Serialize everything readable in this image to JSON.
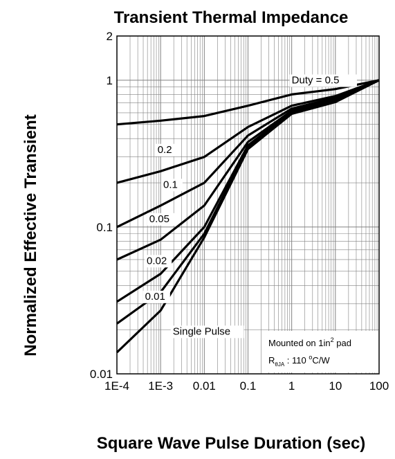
{
  "chart_data": {
    "type": "line",
    "title": "Transient Thermal Impedance",
    "xlabel": "Square Wave Pulse Duration (sec)",
    "ylabel": "Normalized Effective Transient",
    "xscale": "log",
    "yscale": "log",
    "xlim": [
      0.0001,
      100
    ],
    "ylim": [
      0.01,
      2
    ],
    "xtick_labels": [
      "1E-4",
      "1E-3",
      "0.01",
      "0.1",
      "1",
      "10",
      "100"
    ],
    "ytick_labels": [
      "0.01",
      "0.1",
      "1",
      "2"
    ],
    "grid": true,
    "series": [
      {
        "name": "Duty = 0.5",
        "x": [
          0.0001,
          0.001,
          0.01,
          0.1,
          1,
          10,
          100
        ],
        "y": [
          0.5,
          0.53,
          0.57,
          0.67,
          0.8,
          0.87,
          1.0
        ]
      },
      {
        "name": "0.2",
        "x": [
          0.0001,
          0.001,
          0.01,
          0.1,
          1,
          10,
          100
        ],
        "y": [
          0.2,
          0.24,
          0.3,
          0.48,
          0.67,
          0.78,
          1.0
        ]
      },
      {
        "name": "0.1",
        "x": [
          0.0001,
          0.001,
          0.01,
          0.1,
          1,
          10,
          100
        ],
        "y": [
          0.1,
          0.14,
          0.2,
          0.42,
          0.64,
          0.76,
          1.0
        ]
      },
      {
        "name": "0.05",
        "x": [
          0.0001,
          0.001,
          0.01,
          0.1,
          1,
          10,
          100
        ],
        "y": [
          0.06,
          0.082,
          0.14,
          0.38,
          0.62,
          0.74,
          1.0
        ]
      },
      {
        "name": "0.02",
        "x": [
          0.0001,
          0.001,
          0.01,
          0.1,
          1,
          10,
          100
        ],
        "y": [
          0.031,
          0.048,
          0.1,
          0.36,
          0.61,
          0.73,
          1.0
        ]
      },
      {
        "name": "0.01",
        "x": [
          0.0001,
          0.001,
          0.01,
          0.1,
          1,
          10,
          100
        ],
        "y": [
          0.022,
          0.036,
          0.09,
          0.35,
          0.6,
          0.72,
          1.0
        ]
      },
      {
        "name": "Single Pulse",
        "x": [
          0.0001,
          0.001,
          0.01,
          0.1,
          1,
          10,
          100
        ],
        "y": [
          0.014,
          0.027,
          0.085,
          0.34,
          0.59,
          0.71,
          1.0
        ]
      }
    ],
    "series_labels": [
      {
        "text": "Duty =  0.5",
        "x": 1.0,
        "y": 0.95
      },
      {
        "text": "0.2",
        "x": 0.00085,
        "y": 0.32
      },
      {
        "text": "0.1",
        "x": 0.00115,
        "y": 0.185
      },
      {
        "text": "0.05",
        "x": 0.00055,
        "y": 0.108
      },
      {
        "text": "0.02",
        "x": 0.00048,
        "y": 0.056
      },
      {
        "text": "0.01",
        "x": 0.00044,
        "y": 0.032
      },
      {
        "text": "Single Pulse",
        "x": 0.0019,
        "y": 0.0185
      }
    ],
    "annotation": {
      "line1_prefix": "Mounted on 1in",
      "line1_sup": "2",
      "line1_suffix": " pad",
      "line2_main": "R",
      "line2_sub": "θJA",
      "line2_value": " : 110 ",
      "line2_sup": "o",
      "line2_unit": "C/W"
    },
    "colors": {
      "line": "#000000",
      "grid": "#808080",
      "background": "#ffffff"
    }
  }
}
